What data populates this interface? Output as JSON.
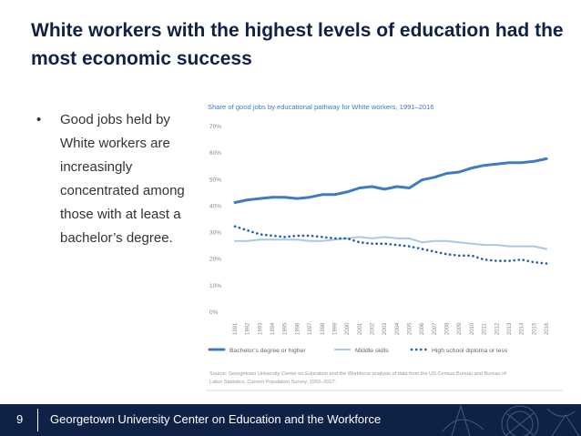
{
  "slide": {
    "title": "White workers with the highest levels of education had the most economic success",
    "bullet_marker": "•",
    "bullet_text": "Good jobs held by White workers are increasingly concentrated among those with at least a bachelor’s degree."
  },
  "footer": {
    "page_number": "9",
    "organization": "Georgetown University Center on Education and the Workforce"
  },
  "colors": {
    "navy": "#0f2147",
    "bachelors": "#3e7cbf",
    "middle": "#a8c8e6",
    "highschool": "#1f5ea8"
  },
  "chart_data": {
    "type": "line",
    "title": "Share of good jobs by educational pathway for White workers, 1991–2016",
    "x": [
      "1991",
      "1992",
      "1993",
      "1994",
      "1995",
      "1996",
      "1997",
      "1998",
      "1999",
      "2000",
      "2001",
      "2002",
      "2003",
      "2004",
      "2005",
      "2006",
      "2007",
      "2008",
      "2009",
      "2010",
      "2011",
      "2012",
      "2013",
      "2014",
      "2015",
      "2016"
    ],
    "y_ticks": [
      "0%",
      "10%",
      "20%",
      "30%",
      "40%",
      "50%",
      "60%",
      "70%"
    ],
    "ylim": [
      0,
      70
    ],
    "series": [
      {
        "name": "Bachelor’s degree or higher",
        "style": "solid-thick",
        "values": [
          41,
          42,
          42.5,
          43,
          43,
          42.5,
          43,
          44,
          44,
          45,
          46.5,
          47,
          46,
          47,
          46.5,
          49.5,
          50.5,
          52,
          52.5,
          54,
          55,
          55.5,
          56,
          56,
          56.5,
          57.5
        ]
      },
      {
        "name": "Middle skills",
        "style": "solid",
        "values": [
          26.5,
          26.5,
          27,
          27,
          27,
          27,
          26.5,
          26.5,
          27,
          27.5,
          28,
          27.5,
          28,
          27.5,
          27.5,
          26,
          26.5,
          26.5,
          26,
          25.5,
          25,
          25,
          24.5,
          24.5,
          24.5,
          23.5
        ]
      },
      {
        "name": "High school diploma or less",
        "style": "dotted",
        "values": [
          32,
          30.5,
          29,
          28.5,
          28,
          28.5,
          28.5,
          28,
          27.5,
          27.5,
          26,
          25.5,
          25.5,
          25,
          24.5,
          23.5,
          22.5,
          21.5,
          21,
          21,
          19.5,
          19,
          19,
          19.5,
          18.5,
          18
        ]
      }
    ],
    "source": "Source: Georgetown University Center on Education and the Workforce analysis of data from the US Census Bureau and Bureau of Labor Statistics, Current Population Survey, 1992–2017."
  }
}
